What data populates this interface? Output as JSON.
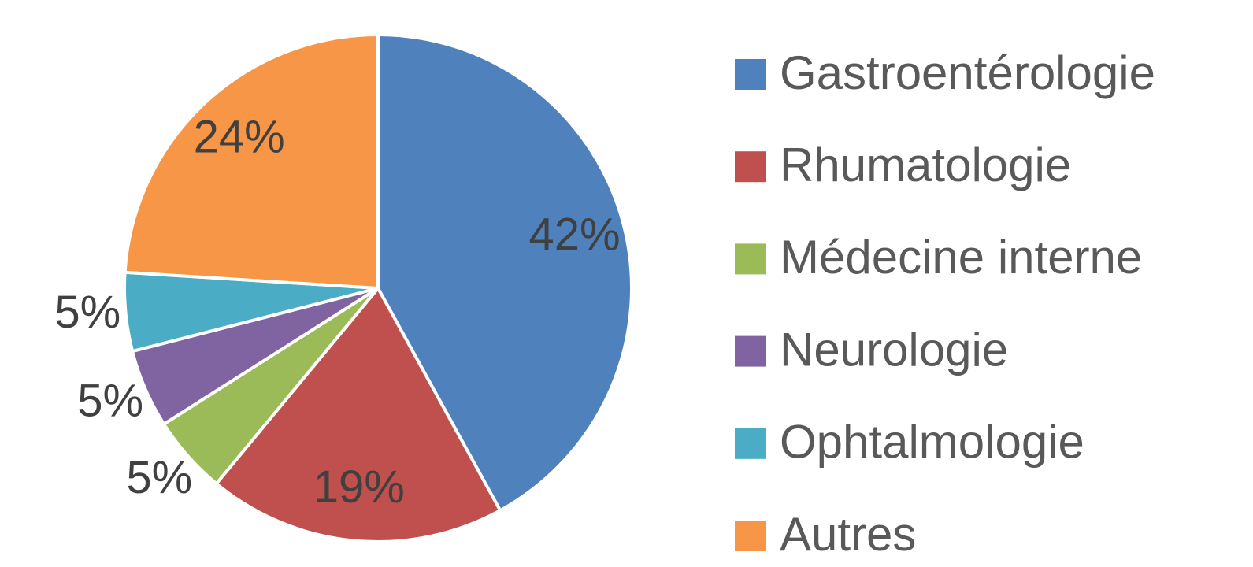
{
  "chart_data": {
    "type": "pie",
    "categories": [
      "Gastroentérologie",
      "Rhumatologie",
      "Médecine interne",
      "Neurologie",
      "Ophtalmologie",
      "Autres"
    ],
    "values": [
      42,
      19,
      5,
      5,
      5,
      24
    ],
    "value_labels": [
      "42%",
      "19%",
      "5%",
      "5%",
      "5%",
      "24%"
    ],
    "colors": [
      "#4f81bd",
      "#c0504d",
      "#9bbb59",
      "#8064a2",
      "#4bacc6",
      "#f79646"
    ],
    "legend": "right"
  }
}
